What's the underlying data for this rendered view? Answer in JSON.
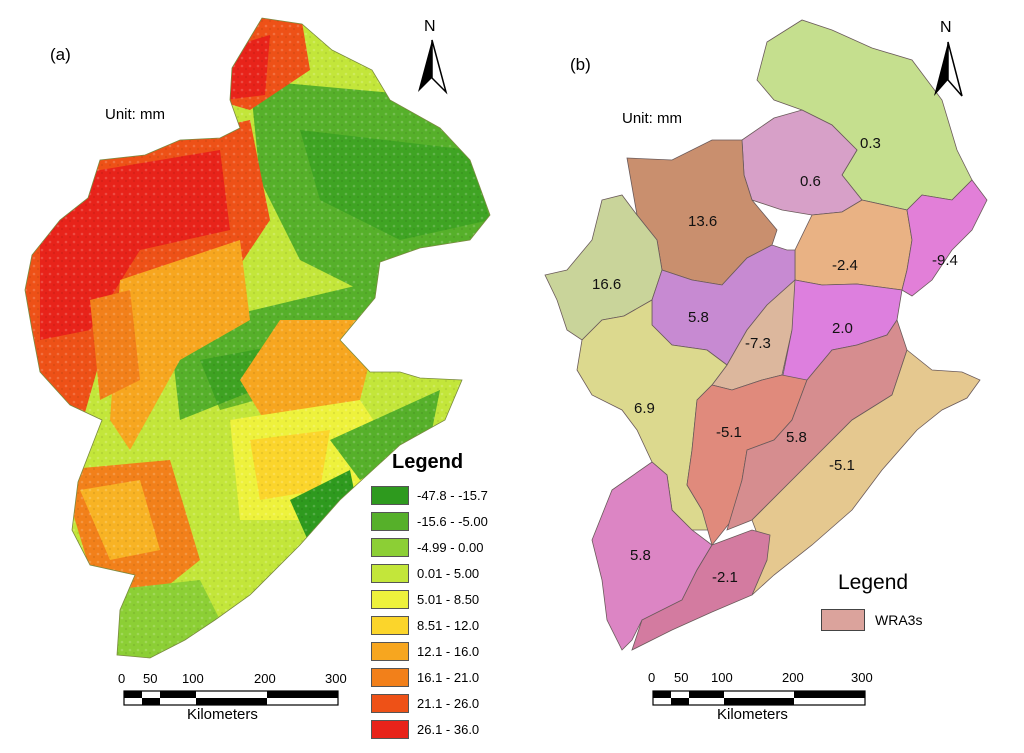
{
  "panel_a": {
    "label": "(a)",
    "unit": "Unit: mm",
    "north": "N",
    "legend": {
      "title": "Legend",
      "classes": [
        {
          "range": "-47.8 - -15.7",
          "color": "#2e9a1e"
        },
        {
          "range": "-15.6 - -5.00",
          "color": "#56b02a"
        },
        {
          "range": "-4.99 - 0.00",
          "color": "#8ccf35"
        },
        {
          "range": "0.01 - 5.00",
          "color": "#c3e63a"
        },
        {
          "range": "5.01 - 8.50",
          "color": "#eef23c"
        },
        {
          "range": "8.51 - 12.0",
          "color": "#fbd52b"
        },
        {
          "range": "12.1 - 16.0",
          "color": "#f7a61f"
        },
        {
          "range": "16.1 - 21.0",
          "color": "#f2801a"
        },
        {
          "range": "21.1 - 26.0",
          "color": "#ee5117"
        },
        {
          "range": "26.1 - 36.0",
          "color": "#e8231a"
        }
      ]
    },
    "scale": {
      "ticks": [
        "0",
        "50",
        "100",
        "200",
        "300"
      ],
      "unit": "Kilometers"
    }
  },
  "panel_b": {
    "label": "(b)",
    "unit": "Unit: mm",
    "north": "N",
    "regions": [
      {
        "value": "0.3",
        "color": "#c5df8e"
      },
      {
        "value": "0.6",
        "color": "#d7a0c8"
      },
      {
        "value": "13.6",
        "color": "#c98f6e"
      },
      {
        "value": "16.6",
        "color": "#c9d49a"
      },
      {
        "value": "-2.4",
        "color": "#e9b284"
      },
      {
        "value": "-9.4",
        "color": "#e27fd8"
      },
      {
        "value": "5.8",
        "color": "#c78ad2"
      },
      {
        "value": "-7.3",
        "color": "#dcb79d"
      },
      {
        "value": "2.0",
        "color": "#dd7fde"
      },
      {
        "value": "6.9",
        "color": "#dcd98e"
      },
      {
        "value": "-5.1",
        "color": "#e08a7c"
      },
      {
        "value": "5.8",
        "color": "#d68d8f"
      },
      {
        "value": "-5.1",
        "color": "#e5c88f"
      },
      {
        "value": "5.8",
        "color": "#dc85c4"
      },
      {
        "value": "-2.1",
        "color": "#d37ba0"
      }
    ],
    "legend": {
      "title": "Legend",
      "item": "WRA3s",
      "item_color": "#dba39c"
    },
    "scale": {
      "ticks": [
        "0",
        "50",
        "100",
        "200",
        "300"
      ],
      "unit": "Kilometers"
    }
  }
}
